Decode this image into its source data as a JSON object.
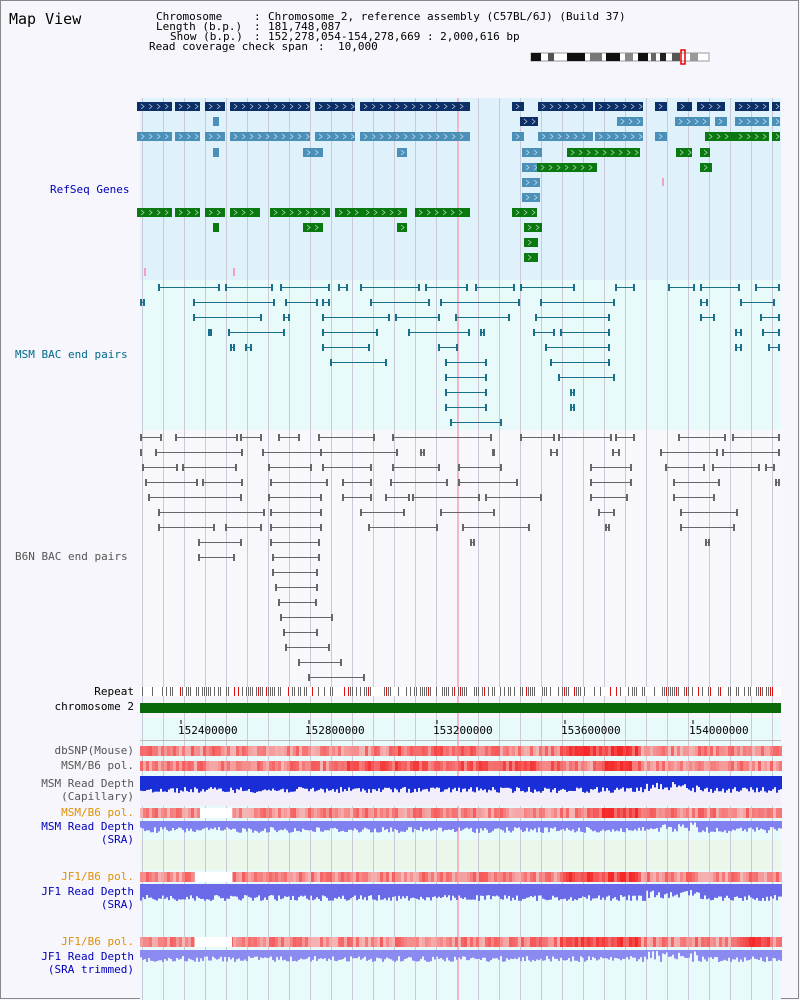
{
  "view": {
    "title": "Map View"
  },
  "info": {
    "chromosome_key": "Chromosome",
    "chromosome_val": "Chromosome 2, reference assembly (C57BL/6J) (Build 37)",
    "length_key": "Length (b.p.)",
    "length_val": "181,748,087",
    "show_key": "Show (b.p.)",
    "show_val": "152,278,054-154,278,669 : 2,000,616 bp",
    "coverage_key": "Read coverage check span",
    "coverage_val": "10,000"
  },
  "tracks": {
    "refseq": "RefSeq Genes",
    "msm_bac": "MSM BAC end pairs",
    "b6n_bac": "B6N BAC end pairs",
    "repeat": "Repeat",
    "chromosome": "chromosome 2",
    "dbsnp": "dbSNP(Mouse)",
    "msm_b6_pol_1": "MSM/B6 pol.",
    "msm_depth_cap_1": "MSM Read Depth",
    "msm_depth_cap_2": "(Capillary)",
    "msm_b6_pol_2": "MSM/B6 pol.",
    "msm_depth_sra_1": "MSM Read Depth",
    "msm_depth_sra_2": "(SRA)",
    "jf1_b6_pol_1": "JF1/B6 pol.",
    "jf1_depth_sra_1": "JF1 Read Depth",
    "jf1_depth_sra_2": "(SRA)",
    "jf1_b6_pol_2": "JF1/B6 pol.",
    "jf1_depth_trim_1": "JF1 Read Depth",
    "jf1_depth_trim_2": "(SRA trimmed)"
  },
  "axis": {
    "ticks": [
      "152400000",
      "152800000",
      "153200000",
      "153600000",
      "154000000"
    ]
  },
  "colors": {
    "refseq_dark": "#0b2f66",
    "refseq_mid": "#4a90b8",
    "refseq_green": "#0a7a10",
    "msm_bac": "#1a6f8a",
    "b6n_bac": "#666666",
    "chromosome_bar": "#0a6a0a",
    "label_blue": "#0000bb",
    "label_teal": "#006a8a",
    "label_orange": "#e09000",
    "label_gray": "#555555"
  }
}
